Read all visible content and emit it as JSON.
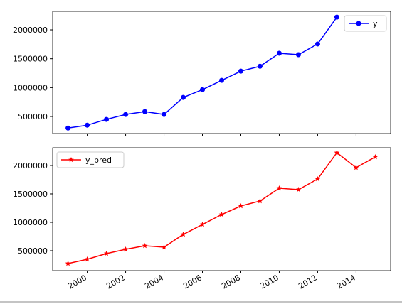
{
  "chart_data": [
    {
      "type": "line",
      "x": [
        1999,
        2000,
        2001,
        2002,
        2003,
        2004,
        2005,
        2006,
        2007,
        2008,
        2009,
        2010,
        2011,
        2012,
        2013
      ],
      "series": [
        {
          "name": "y",
          "color": "#0000ff",
          "marker": "circle",
          "values": [
            300000,
            350000,
            450000,
            535000,
            585000,
            535000,
            830000,
            965000,
            1125000,
            1285000,
            1370000,
            1595000,
            1570000,
            1755000,
            2220000
          ]
        }
      ],
      "xlim": [
        1998.2,
        2015.8
      ],
      "xticks": [
        2000,
        2002,
        2004,
        2006,
        2008,
        2010,
        2012,
        2014
      ],
      "ylim": [
        205000,
        2320000
      ],
      "yticks": [
        500000,
        1000000,
        1500000,
        2000000
      ],
      "legend": "upper right"
    },
    {
      "type": "line",
      "x": [
        1999,
        2000,
        2001,
        2002,
        2003,
        2004,
        2005,
        2006,
        2007,
        2008,
        2009,
        2010,
        2011,
        2012,
        2013,
        2014,
        2015
      ],
      "series": [
        {
          "name": "y_pred",
          "color": "#ff0000",
          "marker": "star",
          "values": [
            275000,
            350000,
            450000,
            525000,
            587000,
            562000,
            787000,
            962000,
            1137000,
            1287000,
            1375000,
            1600000,
            1575000,
            1762000,
            2225000,
            1962000,
            2150000
          ]
        }
      ],
      "xlim": [
        1998.2,
        2015.8
      ],
      "xticks": [
        2000,
        2002,
        2004,
        2006,
        2008,
        2010,
        2012,
        2014
      ],
      "ylim": [
        150000,
        2312000
      ],
      "yticks": [
        500000,
        1000000,
        1500000,
        2000000
      ],
      "legend": "upper left"
    }
  ]
}
